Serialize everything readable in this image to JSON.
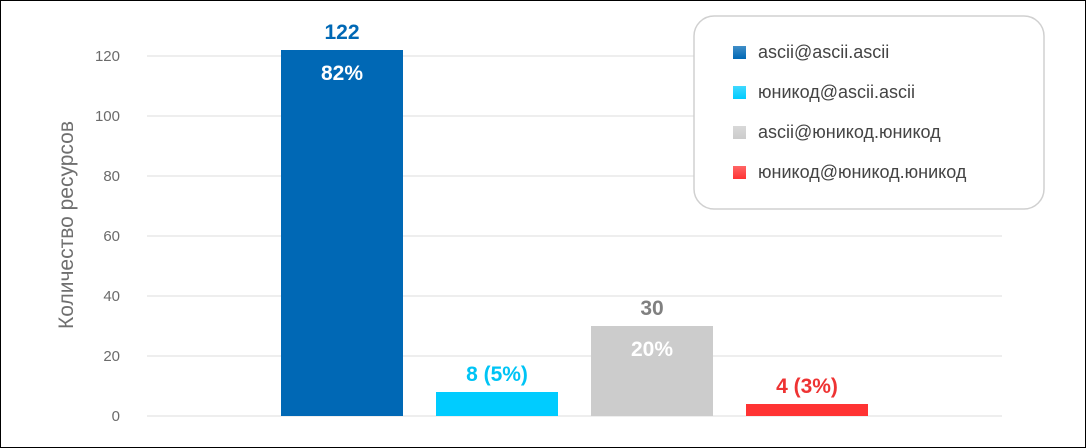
{
  "chart_data": {
    "type": "bar",
    "ylabel": "Количество ресурсов",
    "ylim": [
      0,
      120
    ],
    "yticks": [
      0,
      20,
      40,
      60,
      80,
      100,
      120
    ],
    "grid": true,
    "legend_position": "top-right",
    "series": [
      {
        "name": "ascii@ascii.ascii",
        "value": 122,
        "outer_label": "122",
        "inner_label": "82%",
        "color": "#0068b5",
        "outer_color": "#0068b5"
      },
      {
        "name": "юникод@ascii.ascii",
        "value": 8,
        "outer_label": "8 (5%)",
        "inner_label": "",
        "color": "#00ccff",
        "outer_color": "#00c4f5"
      },
      {
        "name": "ascii@юникод.юникод",
        "value": 30,
        "outer_label": "30",
        "inner_label": "20%",
        "color": "#cccccc",
        "outer_color": "#808080"
      },
      {
        "name": "юникод@юникод.юникод",
        "value": 4,
        "outer_label": "4 (3%)",
        "inner_label": "",
        "color": "#ff3333",
        "outer_color": "#ee3333"
      }
    ]
  }
}
